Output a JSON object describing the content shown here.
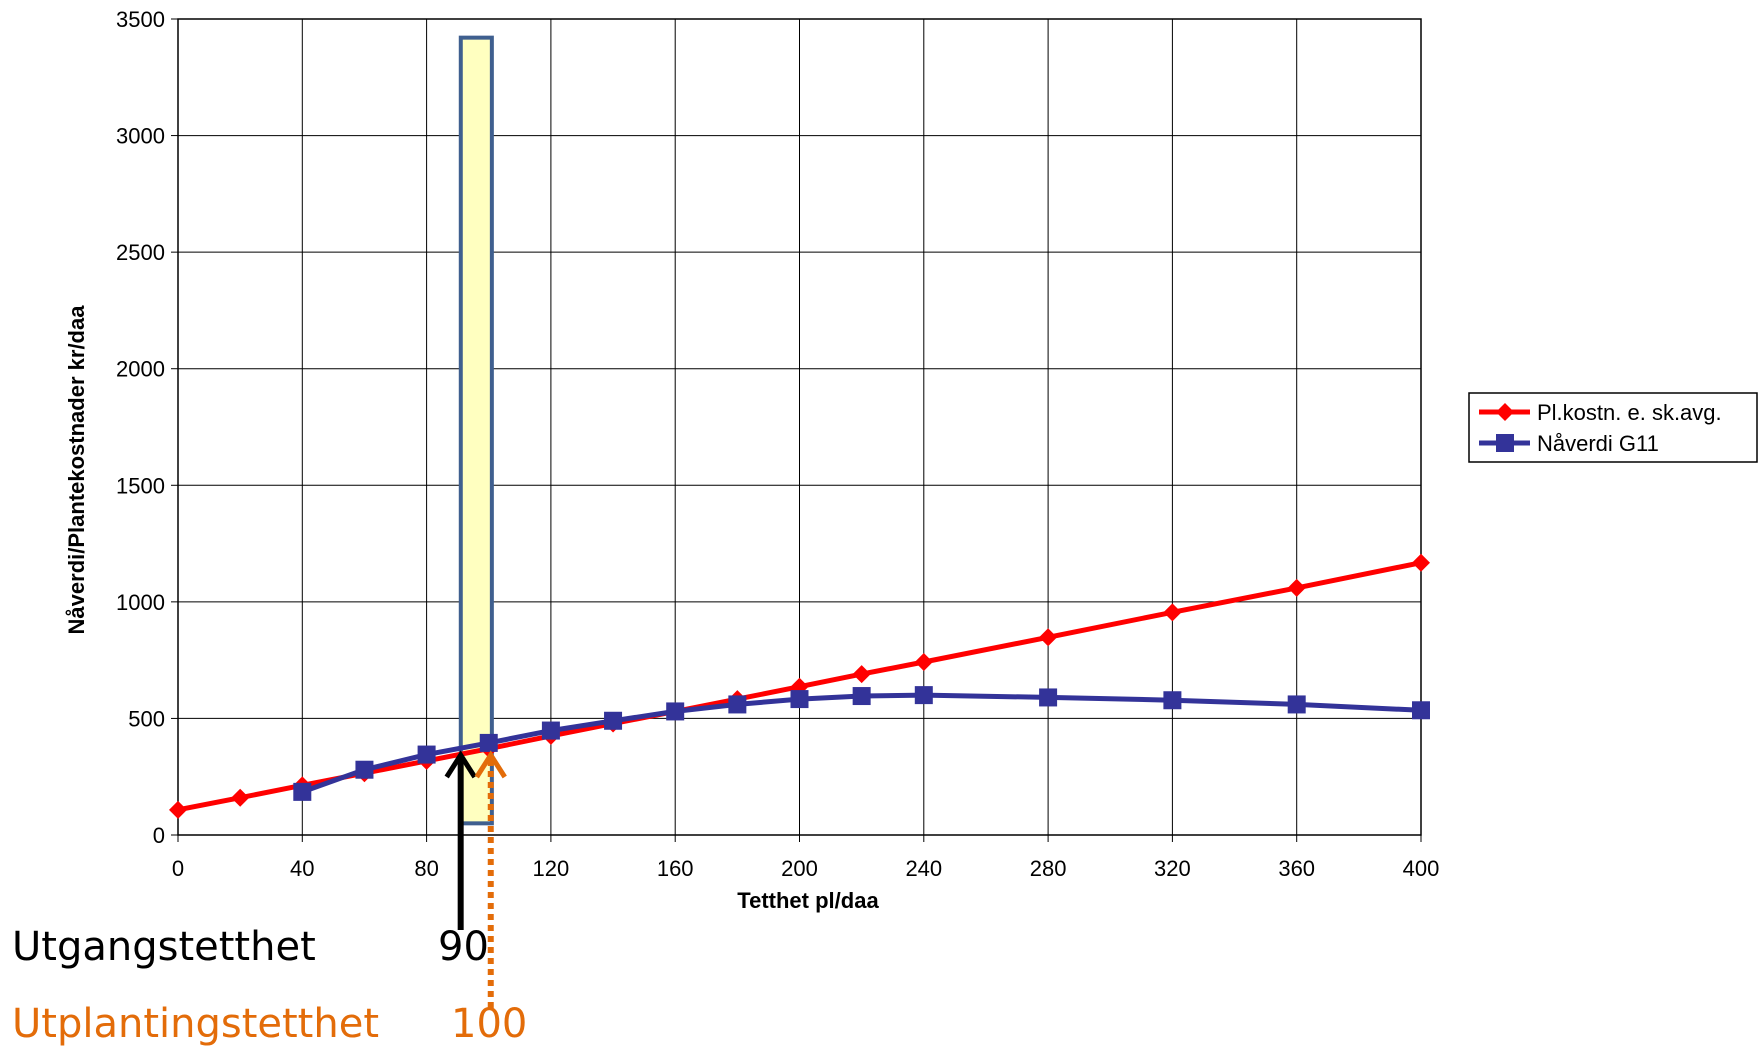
{
  "chart_data": {
    "type": "line",
    "title": "",
    "xlabel": "Tetthet pl/daa",
    "ylabel": "Nåverdi/Plantekostnader kr/daa",
    "xlim": [
      0,
      400
    ],
    "ylim": [
      0,
      3500
    ],
    "x_ticks": [
      0,
      40,
      80,
      120,
      160,
      200,
      240,
      280,
      320,
      360,
      400
    ],
    "y_ticks": [
      0,
      500,
      1000,
      1500,
      2000,
      2500,
      3000,
      3500
    ],
    "grid": true,
    "legend_position": "right",
    "series": [
      {
        "name": "Pl.kostn. e. sk.avg.",
        "color": "#ff0000",
        "marker": "diamond",
        "points": [
          [
            0,
            108
          ],
          [
            20,
            160
          ],
          [
            40,
            213
          ],
          [
            60,
            265
          ],
          [
            80,
            318
          ],
          [
            100,
            370
          ],
          [
            120,
            425
          ],
          [
            140,
            478
          ],
          [
            160,
            530
          ],
          [
            180,
            583
          ],
          [
            200,
            636
          ],
          [
            220,
            690
          ],
          [
            240,
            742
          ],
          [
            280,
            848
          ],
          [
            320,
            955
          ],
          [
            360,
            1060
          ],
          [
            400,
            1168
          ]
        ]
      },
      {
        "name": "Nåverdi G11",
        "color": "#333399",
        "marker": "square",
        "points": [
          [
            40,
            185
          ],
          [
            60,
            280
          ],
          [
            80,
            345
          ],
          [
            100,
            395
          ],
          [
            120,
            448
          ],
          [
            140,
            490
          ],
          [
            160,
            530
          ],
          [
            180,
            560
          ],
          [
            200,
            583
          ],
          [
            220,
            596
          ],
          [
            240,
            600
          ],
          [
            280,
            590
          ],
          [
            320,
            578
          ],
          [
            360,
            560
          ],
          [
            400,
            535
          ]
        ]
      }
    ],
    "highlight_band": {
      "x0": 91,
      "x1": 101,
      "y_top": 3420,
      "y_bottom": 50,
      "fill": "#ffffc0",
      "stroke": "#3f5f8f"
    },
    "markers": [
      {
        "label": "Utgangstetthet",
        "value": "90",
        "x": 90,
        "color": "#000000",
        "style": "solid"
      },
      {
        "label": "Utplantingstetthet",
        "value": "100",
        "x": 100,
        "color": "#e36c09",
        "style": "dotted"
      }
    ]
  }
}
